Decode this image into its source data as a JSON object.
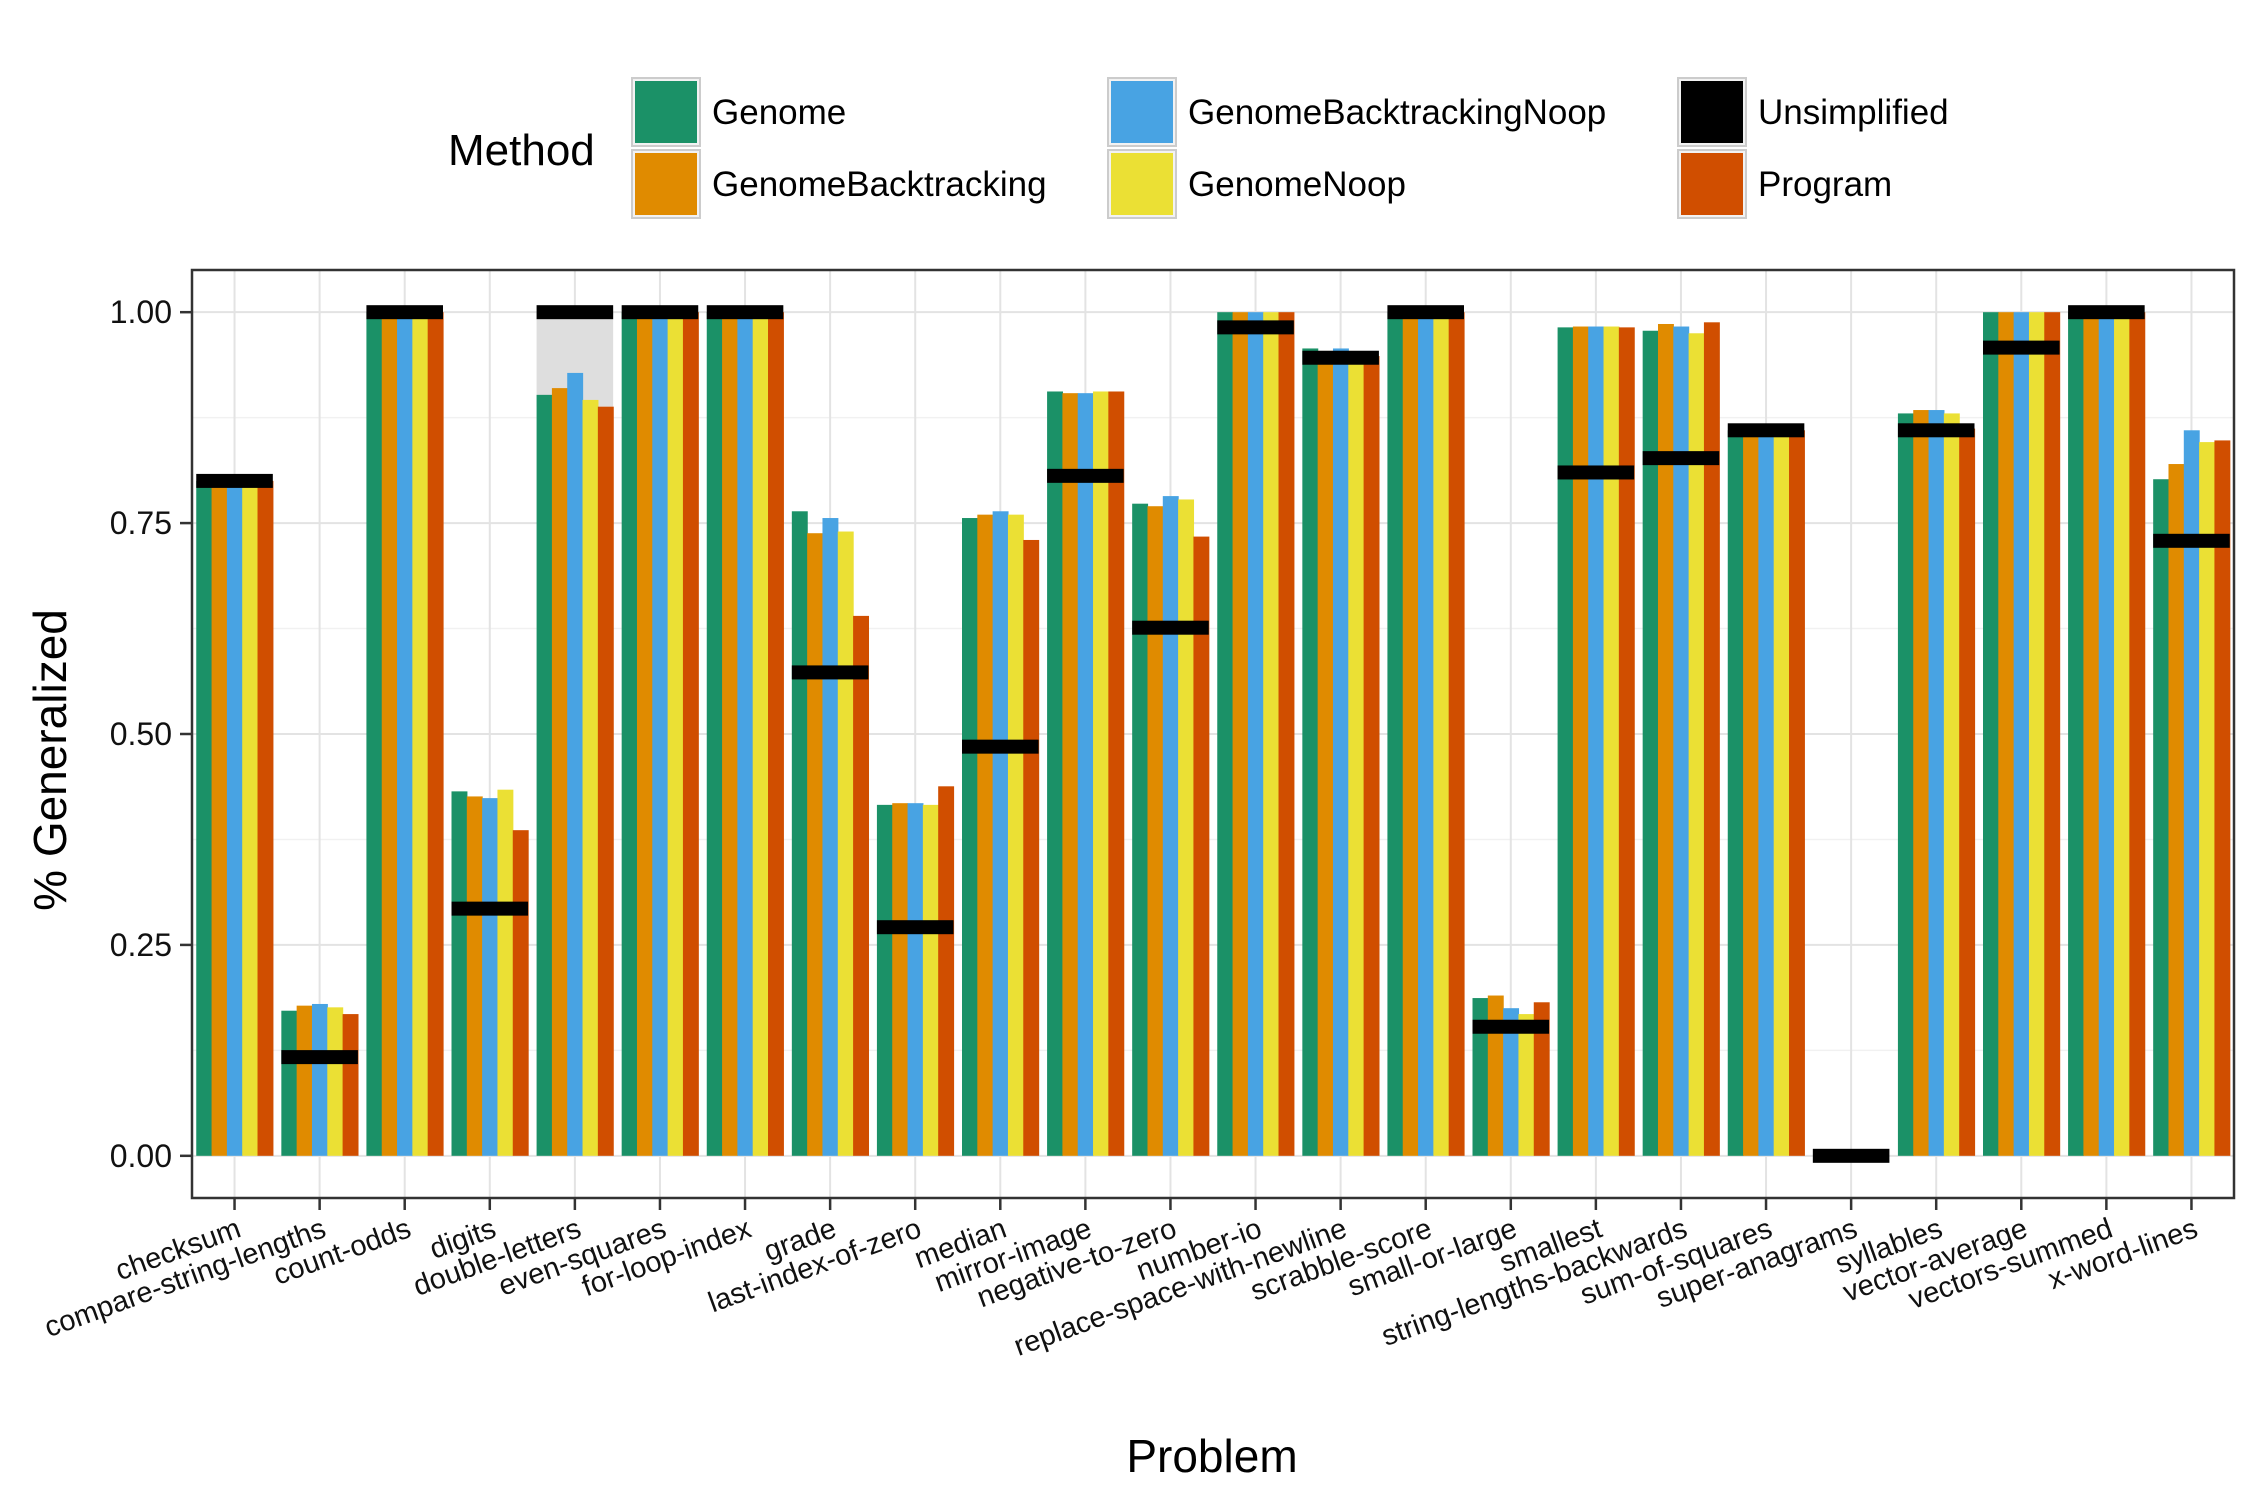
{
  "chart_data": {
    "type": "bar",
    "title": "",
    "xlabel": "Problem",
    "ylabel": "% Generalized",
    "ylim": [
      -0.05,
      1.05
    ],
    "yticks": [
      0.0,
      0.25,
      0.5,
      0.75,
      1.0
    ],
    "ytick_labels": [
      "0.00",
      "0.25",
      "0.50",
      "0.75",
      "1.00"
    ],
    "grid": true,
    "legend": {
      "title": "Method",
      "placement": "top",
      "entries": [
        {
          "name": "Genome",
          "color": "#1b9167"
        },
        {
          "name": "GenomeBacktracking",
          "color": "#e08b00"
        },
        {
          "name": "GenomeBacktrackingNoop",
          "color": "#48a3e3"
        },
        {
          "name": "GenomeNoop",
          "color": "#ebe034"
        },
        {
          "name": "Unsimplified",
          "color": "#000000"
        },
        {
          "name": "Program",
          "color": "#d04e00"
        }
      ]
    },
    "categories": [
      "checksum",
      "compare-string-lengths",
      "count-odds",
      "digits",
      "double-letters",
      "even-squares",
      "for-loop-index",
      "grade",
      "last-index-of-zero",
      "median",
      "mirror-image",
      "negative-to-zero",
      "number-io",
      "replace-space-with-newline",
      "scrabble-score",
      "small-or-large",
      "smallest",
      "string-lengths-backwards",
      "sum-of-squares",
      "super-anagrams",
      "syllables",
      "vector-average",
      "vectors-summed",
      "x-word-lines"
    ],
    "series": [
      {
        "name": "Genome",
        "color": "#1b9167",
        "values": [
          0.8,
          0.172,
          1.0,
          0.432,
          0.902,
          1.0,
          1.0,
          0.764,
          0.416,
          0.756,
          0.906,
          0.773,
          1.0,
          0.957,
          1.0,
          0.187,
          0.982,
          0.978,
          0.86,
          0.0,
          0.88,
          1.0,
          1.0,
          0.802
        ]
      },
      {
        "name": "GenomeBacktracking",
        "color": "#e08b00",
        "values": [
          0.8,
          0.178,
          1.0,
          0.426,
          0.91,
          1.0,
          1.0,
          0.738,
          0.418,
          0.76,
          0.904,
          0.77,
          1.0,
          0.954,
          1.0,
          0.19,
          0.983,
          0.986,
          0.86,
          0.0,
          0.884,
          1.0,
          1.0,
          0.82
        ]
      },
      {
        "name": "GenomeBacktrackingNoop",
        "color": "#48a3e3",
        "values": [
          0.8,
          0.18,
          1.0,
          0.424,
          0.928,
          1.0,
          1.0,
          0.756,
          0.418,
          0.764,
          0.904,
          0.782,
          1.0,
          0.957,
          1.0,
          0.175,
          0.983,
          0.983,
          0.86,
          0.0,
          0.884,
          1.0,
          1.0,
          0.86
        ]
      },
      {
        "name": "GenomeNoop",
        "color": "#ebe034",
        "values": [
          0.8,
          0.176,
          1.0,
          0.434,
          0.896,
          1.0,
          1.0,
          0.74,
          0.416,
          0.76,
          0.906,
          0.778,
          1.0,
          0.954,
          1.0,
          0.168,
          0.983,
          0.975,
          0.86,
          0.0,
          0.88,
          1.0,
          1.0,
          0.846
        ]
      },
      {
        "name": "Program",
        "color": "#d04e00",
        "values": [
          0.8,
          0.168,
          1.0,
          0.386,
          0.888,
          1.0,
          1.0,
          0.64,
          0.438,
          0.73,
          0.906,
          0.734,
          1.0,
          0.948,
          1.0,
          0.182,
          0.982,
          0.988,
          0.86,
          0.0,
          0.862,
          1.0,
          1.0,
          0.848
        ]
      }
    ],
    "unsimplified": {
      "name": "Unsimplified",
      "color": "#000000",
      "values": [
        0.8,
        0.117,
        1.0,
        0.293,
        1.0,
        1.0,
        1.0,
        0.573,
        0.271,
        0.485,
        0.806,
        0.626,
        0.982,
        0.946,
        1.0,
        0.153,
        0.81,
        0.827,
        0.86,
        0.0,
        0.86,
        0.958,
        1.0,
        0.729
      ]
    },
    "shaded_range": {
      "category": "double-letters",
      "from": 0.888,
      "to": 1.0,
      "color": "#dedede"
    }
  }
}
